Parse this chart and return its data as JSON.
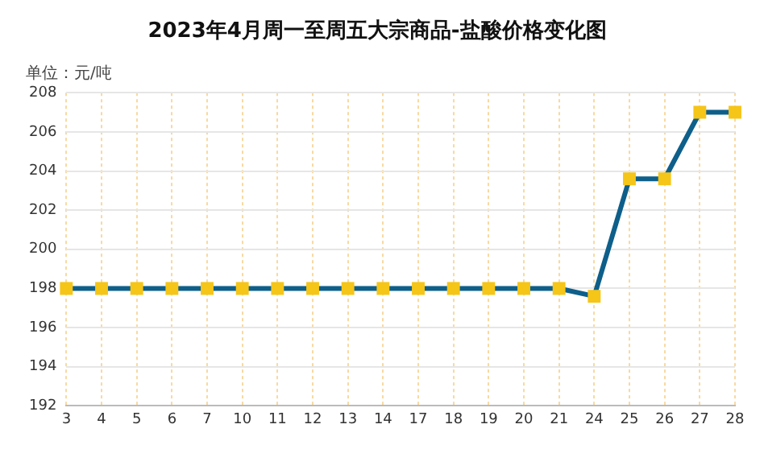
{
  "chart_data": {
    "type": "line",
    "title": "2023年4月周一至周五大宗商品-盐酸价格变化图",
    "ylabel": "单位：元/吨",
    "categories": [
      "3",
      "4",
      "5",
      "6",
      "7",
      "10",
      "11",
      "12",
      "13",
      "14",
      "17",
      "18",
      "19",
      "20",
      "21",
      "24",
      "25",
      "26",
      "27",
      "28"
    ],
    "series": [
      {
        "color": "#0e5f8a",
        "values": [
          198,
          198,
          198,
          198,
          198,
          198,
          198,
          198,
          198,
          198,
          198,
          198,
          198,
          198,
          198,
          197.6,
          203.6,
          203.6,
          207,
          207
        ]
      }
    ],
    "ylim": [
      192,
      208
    ],
    "yticks": [
      192,
      194,
      196,
      198,
      200,
      202,
      204,
      206,
      208
    ],
    "grid": true,
    "legend": false,
    "marker": "square",
    "line_style": "solid"
  }
}
